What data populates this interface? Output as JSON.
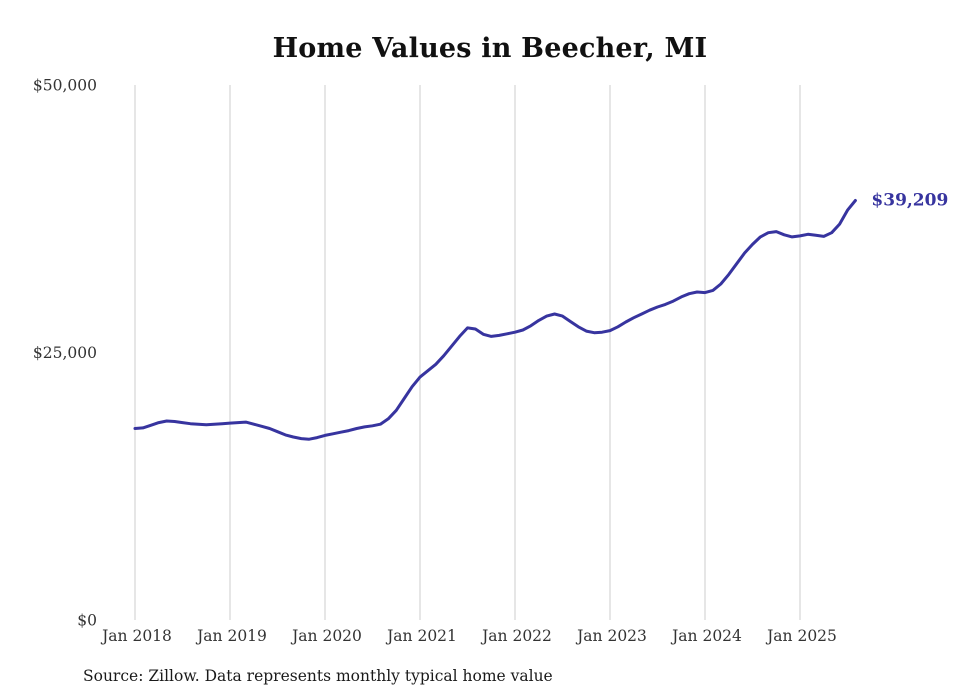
{
  "chart_data": {
    "type": "line",
    "title": "Home Values in Beecher, MI",
    "source": "Source: Zillow. Data represents monthly typical home value",
    "series_name": "Typical home value",
    "end_label": "$39,209",
    "line_color": "#37349f",
    "grid_color": "#cccccc",
    "axis_text_color": "#333333",
    "ylim": [
      0,
      50000
    ],
    "y_ticks": [
      0,
      25000,
      50000
    ],
    "y_tick_labels": [
      "$0",
      "$25,000",
      "$50,000"
    ],
    "x_tick_labels": [
      "Jan 2018",
      "Jan 2019",
      "Jan 2020",
      "Jan 2021",
      "Jan 2022",
      "Jan 2023",
      "Jan 2024",
      "Jan 2025"
    ],
    "months_per_tick": 12,
    "x": [
      "Jan 2018",
      "Feb 2018",
      "Mar 2018",
      "Apr 2018",
      "May 2018",
      "Jun 2018",
      "Jul 2018",
      "Aug 2018",
      "Sep 2018",
      "Oct 2018",
      "Nov 2018",
      "Dec 2018",
      "Jan 2019",
      "Feb 2019",
      "Mar 2019",
      "Apr 2019",
      "May 2019",
      "Jun 2019",
      "Jul 2019",
      "Aug 2019",
      "Sep 2019",
      "Oct 2019",
      "Nov 2019",
      "Dec 2019",
      "Jan 2020",
      "Feb 2020",
      "Mar 2020",
      "Apr 2020",
      "May 2020",
      "Jun 2020",
      "Jul 2020",
      "Aug 2020",
      "Sep 2020",
      "Oct 2020",
      "Nov 2020",
      "Dec 2020",
      "Jan 2021",
      "Feb 2021",
      "Mar 2021",
      "Apr 2021",
      "May 2021",
      "Jun 2021",
      "Jul 2021",
      "Aug 2021",
      "Sep 2021",
      "Oct 2021",
      "Nov 2021",
      "Dec 2021",
      "Jan 2022",
      "Feb 2022",
      "Mar 2022",
      "Apr 2022",
      "May 2022",
      "Jun 2022",
      "Jul 2022",
      "Aug 2022",
      "Sep 2022",
      "Oct 2022",
      "Nov 2022",
      "Dec 2022",
      "Jan 2023",
      "Feb 2023",
      "Mar 2023",
      "Apr 2023",
      "May 2023",
      "Jun 2023",
      "Jul 2023",
      "Aug 2023",
      "Sep 2023",
      "Oct 2023",
      "Nov 2023",
      "Dec 2023",
      "Jan 2024",
      "Feb 2024",
      "Mar 2024",
      "Apr 2024",
      "May 2024",
      "Jun 2024",
      "Jul 2024",
      "Aug 2024",
      "Sep 2024",
      "Oct 2024",
      "Nov 2024",
      "Dec 2024",
      "Jan 2025",
      "Feb 2025",
      "Mar 2025",
      "Apr 2025",
      "May 2025",
      "Jun 2025",
      "Jul 2025",
      "Aug 2025"
    ],
    "values": [
      17900,
      17950,
      18200,
      18450,
      18600,
      18550,
      18450,
      18350,
      18300,
      18250,
      18300,
      18350,
      18400,
      18450,
      18500,
      18300,
      18100,
      17900,
      17600,
      17300,
      17100,
      16950,
      16900,
      17050,
      17250,
      17400,
      17550,
      17700,
      17900,
      18050,
      18150,
      18300,
      18800,
      19600,
      20700,
      21800,
      22700,
      23300,
      23900,
      24700,
      25600,
      26500,
      27300,
      27200,
      26700,
      26500,
      26600,
      26750,
      26900,
      27100,
      27500,
      28000,
      28400,
      28600,
      28400,
      27900,
      27400,
      27000,
      26850,
      26900,
      27050,
      27400,
      27850,
      28250,
      28600,
      28950,
      29250,
      29500,
      29800,
      30200,
      30500,
      30650,
      30600,
      30800,
      31400,
      32300,
      33300,
      34300,
      35100,
      35800,
      36200,
      36300,
      36000,
      35800,
      35900,
      36050,
      35950,
      35850,
      36200,
      37000,
      38300,
      39209
    ]
  }
}
